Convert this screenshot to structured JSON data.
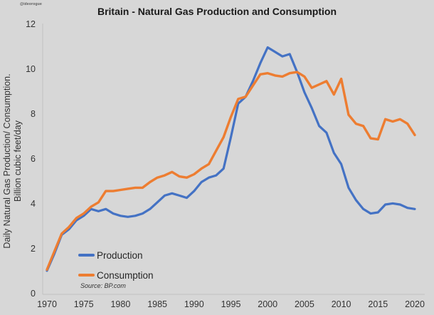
{
  "watermark": "@ideorogue",
  "title": "Britain - Natural Gas Production and Consumption",
  "y_axis_label_line1": "Daily Natural Gas Production/ Consumption.",
  "y_axis_label_line2": "Billion cubic feet/day",
  "source": "Source: BP.com",
  "legend": {
    "production": "Production",
    "consumption": "Consumption"
  },
  "colors": {
    "background": "#d7d7d7",
    "axis": "#c2c2c2",
    "text": "#333333",
    "production": "#4472c4",
    "consumption": "#ed7d31"
  },
  "chart_data": {
    "type": "line",
    "title": "Britain - Natural Gas Production and Consumption",
    "xlabel": "",
    "ylabel": "Daily Natural Gas Production/ Consumption. Billion cubic feet/day",
    "xlim": [
      1970,
      2020
    ],
    "ylim": [
      0,
      12
    ],
    "x_ticks": [
      1970,
      1975,
      1980,
      1985,
      1990,
      1995,
      2000,
      2005,
      2010,
      2015,
      2020
    ],
    "y_ticks": [
      0,
      2,
      4,
      6,
      8,
      10,
      12
    ],
    "grid": false,
    "legend_position": "inside-lower-left",
    "x": [
      1970,
      1971,
      1972,
      1973,
      1974,
      1975,
      1976,
      1977,
      1978,
      1979,
      1980,
      1981,
      1982,
      1983,
      1984,
      1985,
      1986,
      1987,
      1988,
      1989,
      1990,
      1991,
      1992,
      1993,
      1994,
      1995,
      1996,
      1997,
      1998,
      1999,
      2000,
      2001,
      2002,
      2003,
      2004,
      2005,
      2006,
      2007,
      2008,
      2009,
      2010,
      2011,
      2012,
      2013,
      2014,
      2015,
      2016,
      2017,
      2018,
      2019,
      2020
    ],
    "series": [
      {
        "id": "production",
        "name": "Production",
        "color": "#4472c4",
        "values": [
          1.05,
          1.8,
          2.65,
          2.9,
          3.3,
          3.5,
          3.8,
          3.7,
          3.8,
          3.6,
          3.5,
          3.45,
          3.5,
          3.6,
          3.8,
          4.1,
          4.4,
          4.5,
          4.4,
          4.3,
          4.6,
          5.0,
          5.2,
          5.3,
          5.6,
          7.0,
          8.5,
          8.8,
          9.5,
          10.3,
          11.0,
          10.8,
          10.6,
          10.7,
          9.9,
          9.0,
          8.3,
          7.5,
          7.2,
          6.3,
          5.8,
          4.75,
          4.2,
          3.8,
          3.6,
          3.65,
          4.0,
          4.05,
          4.0,
          3.85,
          3.8
        ]
      },
      {
        "id": "consumption",
        "name": "Consumption",
        "color": "#ed7d31",
        "values": [
          1.1,
          1.9,
          2.7,
          3.0,
          3.4,
          3.6,
          3.9,
          4.1,
          4.6,
          4.6,
          4.65,
          4.7,
          4.75,
          4.75,
          5.0,
          5.2,
          5.3,
          5.45,
          5.25,
          5.2,
          5.35,
          5.6,
          5.8,
          6.4,
          7.0,
          7.9,
          8.7,
          8.8,
          9.3,
          9.8,
          9.85,
          9.75,
          9.7,
          9.85,
          9.9,
          9.7,
          9.2,
          9.35,
          9.5,
          8.9,
          9.6,
          8.0,
          7.6,
          7.5,
          6.95,
          6.9,
          7.8,
          7.7,
          7.8,
          7.6,
          7.1
        ]
      }
    ]
  }
}
